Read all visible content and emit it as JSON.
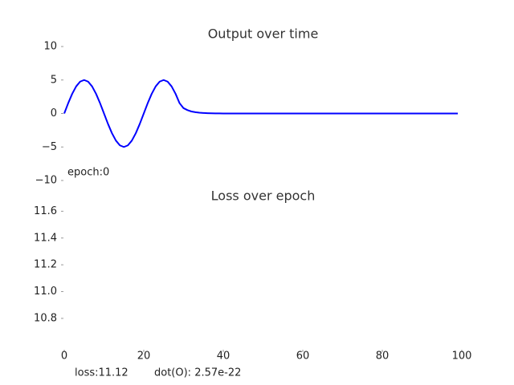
{
  "chart_data": [
    {
      "type": "line",
      "title": "Output over time",
      "x": [
        0,
        1,
        2,
        3,
        4,
        5,
        6,
        7,
        8,
        9,
        10,
        11,
        12,
        13,
        14,
        15,
        16,
        17,
        18,
        19,
        20,
        21,
        22,
        23,
        24,
        25,
        26,
        27,
        28,
        29,
        30,
        31,
        32,
        33,
        34,
        35,
        36,
        37,
        38,
        39,
        40,
        50,
        60,
        70,
        80,
        90,
        99
      ],
      "series": [
        {
          "color": "#0000ff",
          "values": [
            0,
            1.55,
            2.94,
            4.05,
            4.76,
            5,
            4.76,
            4.05,
            2.94,
            1.55,
            0,
            -1.55,
            -2.94,
            -4.05,
            -4.76,
            -5,
            -4.76,
            -4.05,
            -2.94,
            -1.55,
            0,
            1.55,
            2.94,
            4.05,
            4.76,
            5,
            4.76,
            4.05,
            2.94,
            1.55,
            0.8,
            0.5,
            0.3,
            0.2,
            0.12,
            0.08,
            0.05,
            0.03,
            0.02,
            0.01,
            0,
            0,
            0,
            0,
            0,
            0,
            0
          ]
        }
      ],
      "xlim": [
        0,
        100
      ],
      "ylim": [
        -10,
        10
      ],
      "yticks": [
        {
          "value": -10,
          "label": "−10"
        },
        {
          "value": -5,
          "label": "−5"
        },
        0,
        5,
        10
      ],
      "annotations": [
        "epoch:0"
      ]
    },
    {
      "type": "line",
      "title": "Loss over epoch",
      "xlim": [
        0,
        100
      ],
      "xticks": [
        0,
        20,
        40,
        60,
        80,
        100
      ],
      "ylim": [
        10.56,
        11.68
      ],
      "yticks": [
        10.8,
        {
          "value": 11,
          "label": "11.0"
        },
        11.2,
        11.4,
        11.6
      ],
      "annotations": [
        "loss:11.12",
        "dot(O): 2.57e-22"
      ]
    }
  ]
}
